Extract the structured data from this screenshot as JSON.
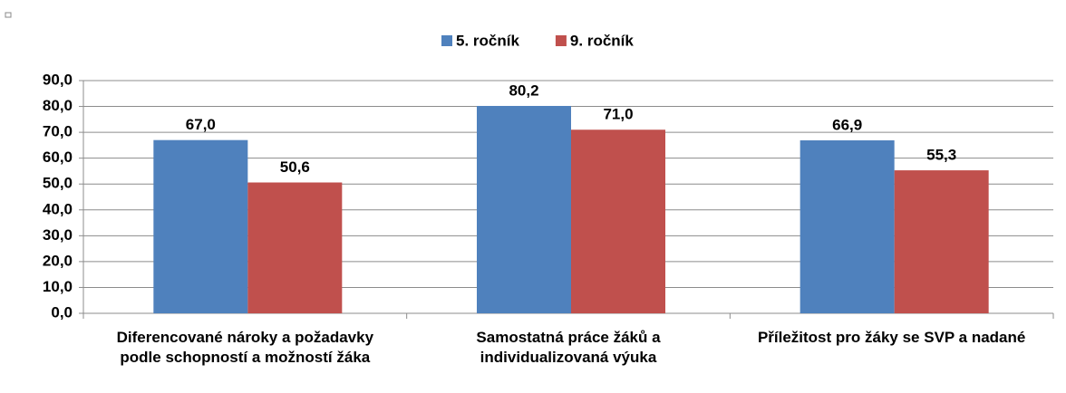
{
  "chart_data": {
    "type": "bar",
    "categories": [
      "Diferencované nároky a požadavky podle schopností a možností žáka",
      "Samostatná práce žáků a individualizovaná výuka",
      "Příležitost pro žáky se SVP a nadané"
    ],
    "series": [
      {
        "name": "5. ročník",
        "color": "#4f81bd",
        "values": [
          67.0,
          80.2,
          66.9
        ],
        "value_labels": [
          "67,0",
          "80,2",
          "66,9"
        ]
      },
      {
        "name": "9. ročník",
        "color": "#c0504d",
        "values": [
          50.6,
          71.0,
          55.3
        ],
        "value_labels": [
          "50,6",
          "71,0",
          "55,3"
        ]
      }
    ],
    "ylim": [
      0,
      90
    ],
    "yticks": [
      {
        "value": 0,
        "label": "0,0"
      },
      {
        "value": 10,
        "label": "10,0"
      },
      {
        "value": 20,
        "label": "20,0"
      },
      {
        "value": 30,
        "label": "30,0"
      },
      {
        "value": 40,
        "label": "40,0"
      },
      {
        "value": 50,
        "label": "50,0"
      },
      {
        "value": 60,
        "label": "60,0"
      },
      {
        "value": 70,
        "label": "70,0"
      },
      {
        "value": 80,
        "label": "80,0"
      },
      {
        "value": 90,
        "label": "90,0"
      }
    ],
    "grid": true,
    "legend": "top"
  }
}
